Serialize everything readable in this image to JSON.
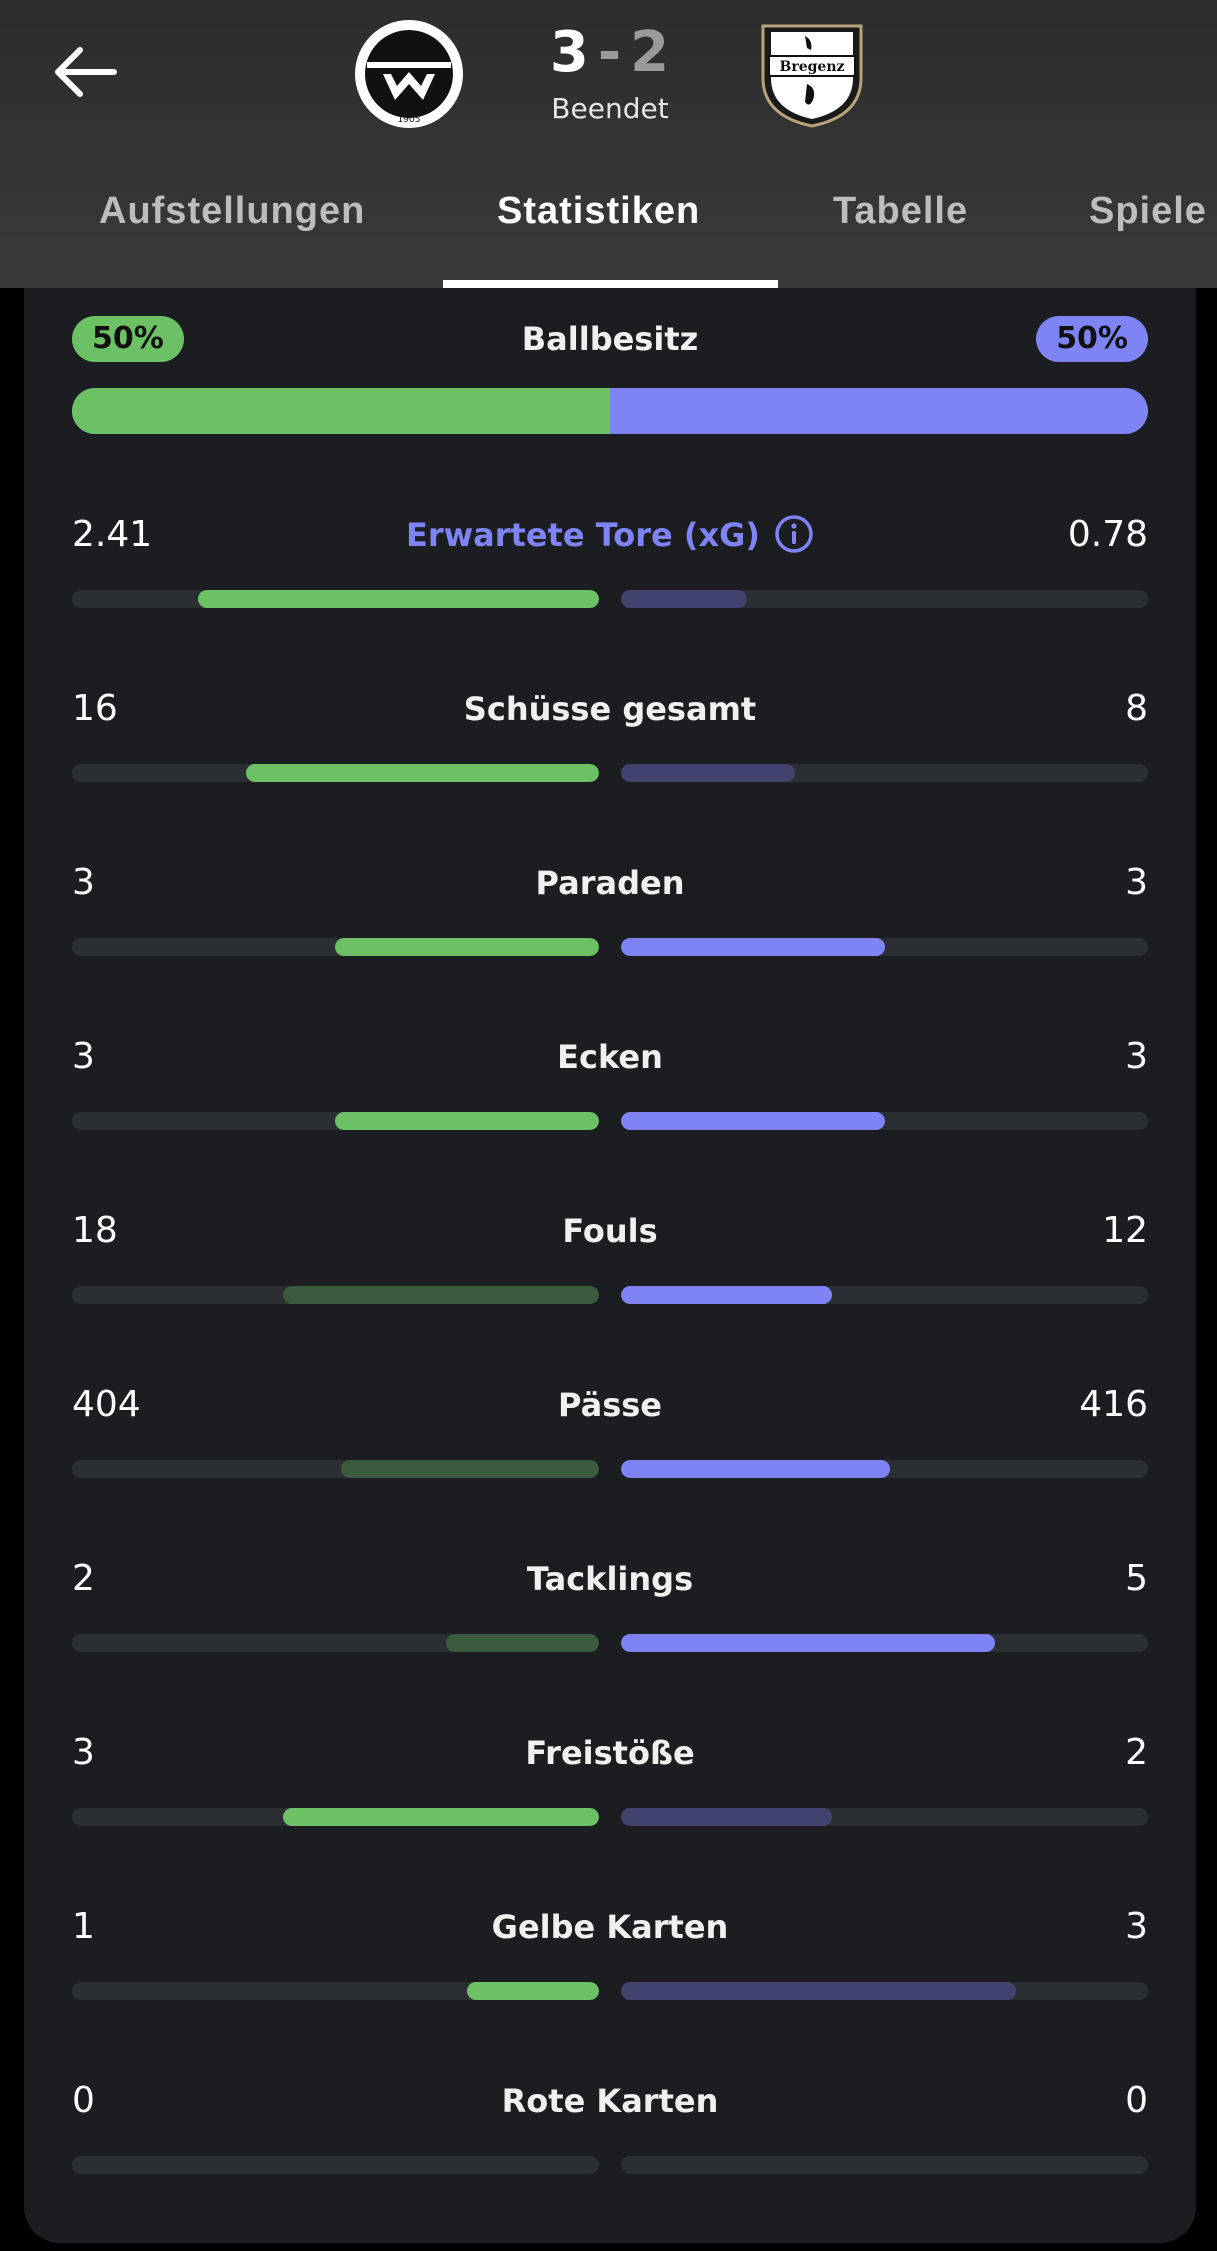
{
  "header": {
    "score_home": "3",
    "score_separator": "-",
    "score_away": "2",
    "status": "Beendet",
    "home_crest_text": "1905",
    "away_crest_text": "Bregenz",
    "icons": {
      "back": "arrow-left-icon",
      "info": "info-icon"
    }
  },
  "tabs": [
    {
      "label": "Aufstellungen",
      "active": false
    },
    {
      "label": "Statistiken",
      "active": true
    },
    {
      "label": "Tabelle",
      "active": false
    },
    {
      "label": "Spiele",
      "active": false
    }
  ],
  "colors": {
    "home": "#6cc164",
    "home_muted": "#3c5a3d",
    "away": "#7f84f5",
    "away_muted": "#41436e",
    "card": "#1b1d20",
    "track": "#2b2e32"
  },
  "possession": {
    "label": "Ballbesitz",
    "home": "50%",
    "away": "50%",
    "home_fraction": 0.5
  },
  "stats": [
    {
      "label": "Erwartete Tore (xG)",
      "home": "2.41",
      "away": "0.78",
      "home_fill": 0.76,
      "away_fill": 0.24,
      "home_leads": true,
      "away_leads": false,
      "accent": true
    },
    {
      "label": "Schüsse gesamt",
      "home": "16",
      "away": "8",
      "home_fill": 0.67,
      "away_fill": 0.33,
      "home_leads": true,
      "away_leads": false
    },
    {
      "label": "Paraden",
      "home": "3",
      "away": "3",
      "home_fill": 0.5,
      "away_fill": 0.5,
      "home_leads": true,
      "away_leads": true
    },
    {
      "label": "Ecken",
      "home": "3",
      "away": "3",
      "home_fill": 0.5,
      "away_fill": 0.5,
      "home_leads": true,
      "away_leads": true
    },
    {
      "label": "Fouls",
      "home": "18",
      "away": "12",
      "home_fill": 0.6,
      "away_fill": 0.4,
      "home_leads": false,
      "away_leads": true
    },
    {
      "label": "Pässe",
      "home": "404",
      "away": "416",
      "home_fill": 0.49,
      "away_fill": 0.51,
      "home_leads": false,
      "away_leads": true
    },
    {
      "label": "Tacklings",
      "home": "2",
      "away": "5",
      "home_fill": 0.29,
      "away_fill": 0.71,
      "home_leads": false,
      "away_leads": true
    },
    {
      "label": "Freistöße",
      "home": "3",
      "away": "2",
      "home_fill": 0.6,
      "away_fill": 0.4,
      "home_leads": true,
      "away_leads": false
    },
    {
      "label": "Gelbe Karten",
      "home": "1",
      "away": "3",
      "home_fill": 0.25,
      "away_fill": 0.75,
      "home_leads": true,
      "away_leads": false
    },
    {
      "label": "Rote Karten",
      "home": "0",
      "away": "0",
      "home_fill": 0,
      "away_fill": 0,
      "home_leads": false,
      "away_leads": false
    }
  ]
}
